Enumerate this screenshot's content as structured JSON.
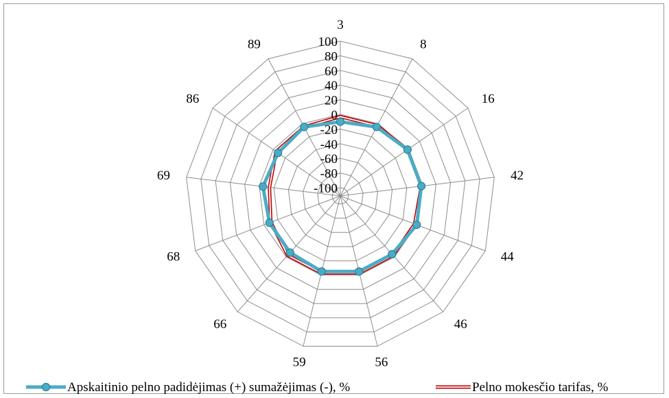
{
  "chart_data": {
    "type": "radar",
    "categories": [
      "3",
      "8",
      "16",
      "42",
      "44",
      "46",
      "56",
      "59",
      "66",
      "68",
      "69",
      "86",
      "89"
    ],
    "r_axis": {
      "min": -100,
      "max": 100,
      "ticks": [
        "100",
        "80",
        "60",
        "40",
        "20",
        "0",
        "-20",
        "-40",
        "-60",
        "-80",
        "-100"
      ]
    },
    "grid": true,
    "legend_position": "bottom",
    "series": [
      {
        "name": "Apskaitinio pelno padidėjimas (+) sumažėjimas (-), %",
        "color": "#4bacc6",
        "marker": "circle",
        "values": [
          -10,
          -5,
          0,
          0,
          0,
          -5,
          -5,
          -5,
          -8,
          -8,
          -5,
          -8,
          -5
        ]
      },
      {
        "name": "Pelno mokesčio tarifas, %",
        "color": "#c00000",
        "style": "double-line",
        "values": [
          -3,
          -3,
          0,
          0,
          -3,
          -3,
          -3,
          -3,
          -3,
          -10,
          -14,
          -5,
          -5
        ]
      }
    ]
  }
}
